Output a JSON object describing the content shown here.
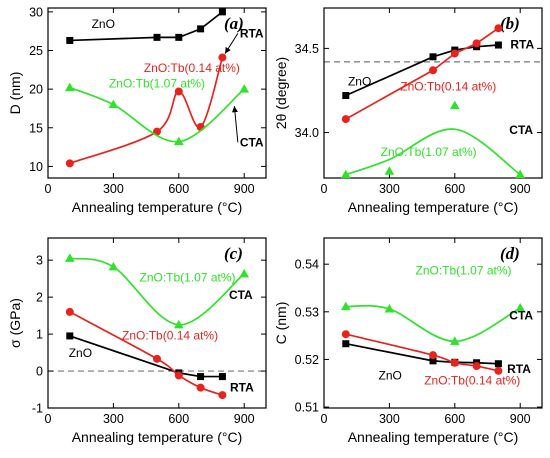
{
  "colors": {
    "zno": "#000000",
    "tb014": "#e8231e",
    "tb107": "#2ee32a",
    "ref": "#777777"
  },
  "chart_data": [
    {
      "id": "a",
      "type": "line",
      "panel_label": "(a)",
      "xlabel": "Annealing temperature (°C)",
      "ylabel": "D (nm)",
      "xlim": [
        0,
        1000
      ],
      "ylim": [
        8.5,
        30.5
      ],
      "xticks": [
        0,
        300,
        600,
        900
      ],
      "yticks": [
        10,
        15,
        20,
        25,
        30
      ],
      "series": [
        {
          "name": "ZnO",
          "color": "zno",
          "marker": "square",
          "curve": "polyline",
          "x": [
            100,
            500,
            600,
            700,
            800
          ],
          "y": [
            26.3,
            26.7,
            26.7,
            27.8,
            30.0
          ]
        },
        {
          "name": "ZnO:Tb(0.14 at%)",
          "color": "tb014",
          "marker": "circle",
          "curve": "smooth",
          "x": [
            100,
            500,
            600,
            700,
            800
          ],
          "y": [
            10.4,
            14.5,
            19.7,
            15.1,
            24.1
          ]
        },
        {
          "name": "ZnO:Tb(1.07 at%)",
          "color": "tb107",
          "marker": "triangle",
          "curve": "smooth",
          "x": [
            100,
            300,
            600,
            900
          ],
          "y": [
            20.2,
            18.0,
            13.2,
            20.0
          ]
        }
      ],
      "annotations": [
        {
          "text": "ZnO",
          "color": "zno",
          "x": 200,
          "y": 27.9
        },
        {
          "text": "ZnO:Tb(0.14 at%)",
          "color": "tb014",
          "x": 660,
          "y": 22.2,
          "anchor": "middle"
        },
        {
          "text": "ZnO:Tb(1.07 at%)",
          "color": "tb107",
          "x": 500,
          "y": 20.2,
          "anchor": "middle"
        },
        {
          "text": "RTA",
          "bold": true,
          "x": 880,
          "y": 26.7,
          "arrow_to": [
            812,
            24.6
          ]
        },
        {
          "text": "CTA",
          "bold": true,
          "x": 880,
          "y": 12.6,
          "arrow_to": [
            855,
            17.8
          ]
        }
      ]
    },
    {
      "id": "b",
      "type": "line",
      "panel_label": "(b)",
      "xlabel": "Annealing temperature (°C)",
      "ylabel": "2θ (degree)",
      "xlim": [
        0,
        1000
      ],
      "ylim": [
        33.73,
        34.74
      ],
      "xticks": [
        0,
        300,
        600,
        900
      ],
      "yticks": [
        34.0,
        34.5
      ],
      "ytick_labels": [
        "34.0",
        "34.5"
      ],
      "ref_line": 34.42,
      "series": [
        {
          "name": "ZnO",
          "color": "zno",
          "marker": "square",
          "curve": "polyline",
          "x": [
            100,
            500,
            600,
            700,
            800
          ],
          "y": [
            34.22,
            34.45,
            34.49,
            34.51,
            34.52
          ]
        },
        {
          "name": "ZnO:Tb(0.14 at%)",
          "color": "tb014",
          "marker": "circle",
          "curve": "polyline",
          "x": [
            100,
            500,
            600,
            700,
            800
          ],
          "y": [
            34.08,
            34.37,
            34.47,
            34.53,
            34.62
          ]
        },
        {
          "name": "ZnO:Tb(1.07 at%)",
          "color": "tb107",
          "marker": "triangle",
          "curve": "smooth",
          "x": [
            100,
            300,
            600,
            900
          ],
          "y": [
            33.75,
            33.77,
            34.16,
            33.75
          ],
          "curve_points": [
            [
              100,
              33.75
            ],
            [
              300,
              33.84
            ],
            [
              600,
              34.02
            ],
            [
              900,
              33.75
            ]
          ]
        }
      ],
      "annotations": [
        {
          "text": "ZnO",
          "color": "zno",
          "x": 110,
          "y": 34.28
        },
        {
          "text": "ZnO:Tb(0.14 at%)",
          "color": "tb014",
          "x": 570,
          "y": 34.25,
          "anchor": "middle"
        },
        {
          "text": "ZnO:Tb(1.07 at%)",
          "color": "tb107",
          "x": 480,
          "y": 33.86,
          "anchor": "middle"
        },
        {
          "text": "RTA",
          "bold": true,
          "x": 855,
          "y": 34.5
        },
        {
          "text": "CTA",
          "bold": true,
          "x": 850,
          "y": 33.99
        }
      ]
    },
    {
      "id": "c",
      "type": "line",
      "panel_label": "(c)",
      "xlabel": "Annealing temperature (°C)",
      "ylabel": "σ (GPa)",
      "xlim": [
        0,
        1000
      ],
      "ylim": [
        -1.0,
        3.6
      ],
      "xticks": [
        0,
        300,
        600,
        900
      ],
      "yticks": [
        -1,
        0,
        1,
        2,
        3
      ],
      "ref_line": 0,
      "series": [
        {
          "name": "ZnO",
          "color": "zno",
          "marker": "square",
          "curve": "polyline",
          "x": [
            100,
            600,
            700,
            800
          ],
          "y": [
            0.95,
            -0.05,
            -0.15,
            -0.15
          ]
        },
        {
          "name": "ZnO:Tb(0.14 at%)",
          "color": "tb014",
          "marker": "circle",
          "curve": "smooth",
          "x": [
            100,
            500,
            600,
            700,
            800
          ],
          "y": [
            1.6,
            0.33,
            -0.12,
            -0.45,
            -0.65
          ]
        },
        {
          "name": "ZnO:Tb(1.07 at%)",
          "color": "tb107",
          "marker": "triangle",
          "curve": "smooth",
          "x": [
            100,
            300,
            600,
            900
          ],
          "y": [
            3.05,
            2.82,
            1.25,
            2.63
          ]
        }
      ],
      "annotations": [
        {
          "text": "ZnO",
          "color": "zno",
          "x": 95,
          "y": 0.38
        },
        {
          "text": "ZnO:Tb(0.14 at%)",
          "color": "tb014",
          "x": 560,
          "y": 0.85,
          "anchor": "middle"
        },
        {
          "text": "ZnO:Tb(1.07 at%)",
          "color": "tb107",
          "x": 640,
          "y": 2.42,
          "anchor": "middle"
        },
        {
          "text": "RTA",
          "bold": true,
          "x": 835,
          "y": -0.55
        },
        {
          "text": "CTA",
          "bold": true,
          "x": 830,
          "y": 1.95
        }
      ]
    },
    {
      "id": "d",
      "type": "line",
      "panel_label": "(d)",
      "xlabel": "Annealing temperature (°C)",
      "ylabel": "C (nm)",
      "xlim": [
        0,
        1000
      ],
      "ylim": [
        0.5098,
        0.5455
      ],
      "xticks": [
        0,
        300,
        600,
        900
      ],
      "yticks": [
        0.51,
        0.52,
        0.53,
        0.54
      ],
      "ytick_labels": [
        "0.51",
        "0.52",
        "0.53",
        "0.54"
      ],
      "series": [
        {
          "name": "ZnO",
          "color": "zno",
          "marker": "square",
          "curve": "polyline",
          "x": [
            100,
            500,
            600,
            700,
            800
          ],
          "y": [
            0.5233,
            0.5197,
            0.5194,
            0.5193,
            0.5191
          ]
        },
        {
          "name": "ZnO:Tb(0.14 at%)",
          "color": "tb014",
          "marker": "circle",
          "curve": "smooth",
          "x": [
            100,
            500,
            600,
            700,
            800
          ],
          "y": [
            0.5253,
            0.5209,
            0.5193,
            0.5186,
            0.5176
          ]
        },
        {
          "name": "ZnO:Tb(1.07 at%)",
          "color": "tb107",
          "marker": "triangle",
          "curve": "smooth",
          "x": [
            100,
            300,
            600,
            900
          ],
          "y": [
            0.5311,
            0.5306,
            0.5238,
            0.5308
          ]
        }
      ],
      "annotations": [
        {
          "text": "ZnO",
          "color": "zno",
          "x": 250,
          "y": 0.5158
        },
        {
          "text": "ZnO:Tb(0.14 at%)",
          "color": "tb014",
          "x": 680,
          "y": 0.5147,
          "anchor": "middle"
        },
        {
          "text": "ZnO:Tb(1.07 at%)",
          "color": "tb107",
          "x": 640,
          "y": 0.5378,
          "anchor": "middle"
        },
        {
          "text": "RTA",
          "bold": true,
          "x": 840,
          "y": 0.5172
        },
        {
          "text": "CTA",
          "bold": true,
          "x": 850,
          "y": 0.5284
        }
      ]
    }
  ]
}
